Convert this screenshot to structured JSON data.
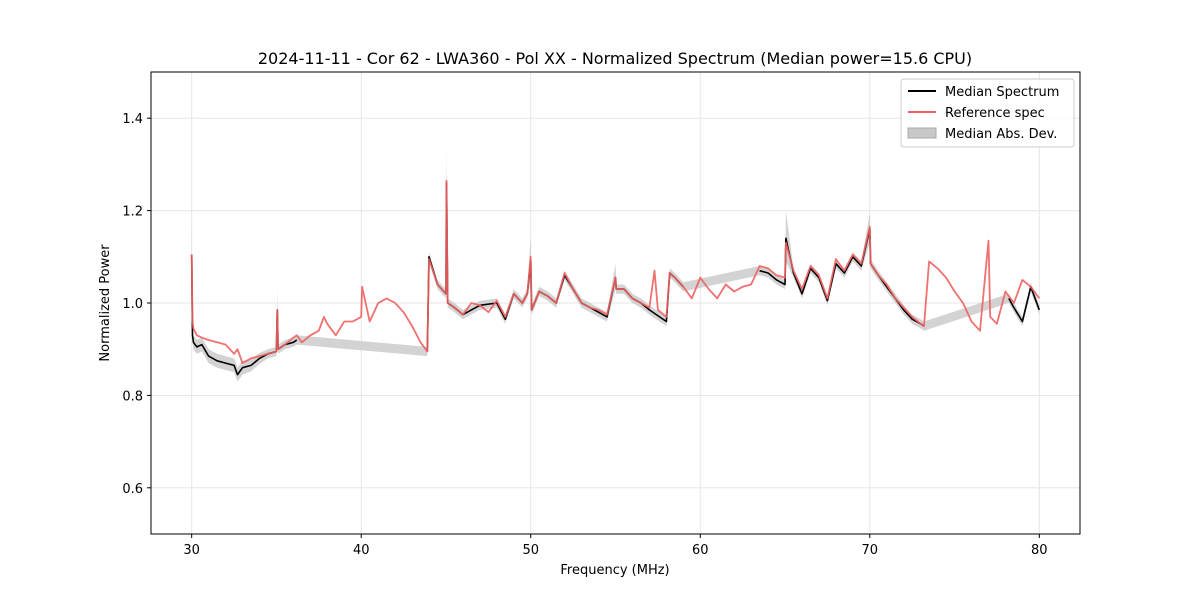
{
  "chart_data": {
    "type": "line",
    "title": "2024-11-11 - Cor 62 - LWA360 - Pol XX - Normalized Spectrum (Median power=15.6 CPU)",
    "xlabel": "Frequency (MHz)",
    "ylabel": "Normalized Power",
    "xlim": [
      27.6,
      82.4
    ],
    "ylim": [
      0.5,
      1.5
    ],
    "xticks": [
      30,
      40,
      50,
      60,
      70,
      80
    ],
    "yticks": [
      0.6,
      0.8,
      1.0,
      1.2,
      1.4
    ],
    "xtick_labels": [
      "30",
      "40",
      "50",
      "60",
      "70",
      "80"
    ],
    "ytick_labels": [
      "0.6",
      "0.8",
      "1.0",
      "1.2",
      "1.4"
    ],
    "grid": true,
    "legend_position": "top-right",
    "legend": [
      {
        "label": "Median Spectrum",
        "kind": "line",
        "color": "#000000"
      },
      {
        "label": "Reference spec",
        "kind": "line",
        "color": "#f06060"
      },
      {
        "label": "Median Abs. Dev.",
        "kind": "patch",
        "color": "#c8c8c8"
      }
    ],
    "series": [
      {
        "name": "Reference spec",
        "color": "#f06060",
        "x": [
          30.0,
          30.05,
          30.1,
          30.3,
          30.6,
          31.0,
          31.5,
          32.0,
          32.5,
          32.7,
          33.0,
          33.5,
          34.0,
          34.5,
          35.0,
          35.05,
          35.1,
          35.5,
          36.0,
          36.2,
          36.5,
          37.0,
          37.5,
          37.8,
          38.0,
          38.5,
          39.0,
          39.5,
          40.0,
          40.05,
          40.5,
          41.0,
          41.5,
          42.0,
          42.5,
          43.0,
          43.5,
          43.9,
          44.0,
          44.5,
          45.0,
          45.03,
          45.1,
          45.5,
          46.0,
          46.5,
          47.0,
          47.5,
          48.0,
          48.5,
          49.0,
          49.5,
          49.8,
          50.0,
          50.05,
          50.5,
          51.0,
          51.5,
          52.0,
          52.5,
          53.0,
          53.5,
          54.0,
          54.5,
          55.0,
          55.05,
          55.5,
          56.0,
          56.5,
          57.0,
          57.3,
          57.5,
          58.0,
          58.2,
          58.5,
          59.0,
          59.5,
          60.0,
          60.5,
          61.0,
          61.5,
          62.0,
          62.5,
          63.0,
          63.5,
          64.0,
          64.5,
          65.0,
          65.05,
          65.5,
          66.0,
          66.5,
          67.0,
          67.5,
          68.0,
          68.5,
          69.0,
          69.5,
          70.0,
          70.05,
          70.5,
          71.0,
          71.5,
          72.0,
          72.5,
          73.0,
          73.2,
          73.5,
          74.0,
          74.5,
          75.0,
          75.5,
          76.0,
          76.5,
          77.0,
          77.1,
          77.5,
          78.0,
          78.5,
          79.0,
          79.5,
          80.0
        ],
        "y": [
          1.105,
          0.96,
          0.945,
          0.93,
          0.925,
          0.92,
          0.915,
          0.91,
          0.89,
          0.9,
          0.87,
          0.88,
          0.885,
          0.89,
          0.895,
          0.985,
          0.9,
          0.91,
          0.925,
          0.93,
          0.915,
          0.93,
          0.94,
          0.97,
          0.955,
          0.93,
          0.96,
          0.96,
          0.97,
          1.035,
          0.96,
          1.0,
          1.01,
          1.0,
          0.98,
          0.95,
          0.915,
          0.895,
          1.095,
          1.04,
          1.02,
          1.265,
          1.0,
          0.99,
          0.975,
          1.0,
          0.995,
          0.98,
          1.005,
          0.97,
          1.02,
          1.0,
          1.02,
          1.1,
          0.985,
          1.025,
          1.015,
          1.0,
          1.065,
          1.03,
          1.0,
          0.99,
          0.985,
          0.975,
          1.055,
          1.03,
          1.03,
          1.01,
          1.0,
          0.99,
          1.07,
          0.985,
          0.97,
          1.065,
          1.055,
          1.035,
          1.01,
          1.055,
          1.03,
          1.01,
          1.04,
          1.025,
          1.035,
          1.04,
          1.08,
          1.075,
          1.06,
          1.055,
          1.13,
          1.07,
          1.03,
          1.08,
          1.06,
          1.01,
          1.095,
          1.07,
          1.105,
          1.085,
          1.165,
          1.085,
          1.06,
          1.04,
          1.01,
          0.99,
          0.97,
          0.955,
          0.95,
          1.09,
          1.075,
          1.055,
          1.025,
          1.0,
          0.96,
          0.94,
          1.135,
          0.97,
          0.955,
          1.025,
          1.0,
          1.05,
          1.035,
          1.01
        ]
      },
      {
        "name": "Median Spectrum",
        "color": "#000000",
        "x": [
          30.0,
          30.05,
          30.1,
          30.3,
          30.6,
          31.0,
          31.5,
          32.0,
          32.5,
          32.7,
          33.0,
          33.5,
          34.0,
          34.5,
          35.0,
          35.05,
          35.1,
          35.5,
          36.0,
          36.2,
          43.9,
          44.0,
          44.5,
          45.0,
          45.03,
          45.1,
          45.5,
          46.0,
          47.0,
          48.0,
          48.5,
          49.0,
          49.5,
          49.8,
          50.0,
          50.05,
          50.5,
          51.0,
          51.5,
          52.0,
          52.5,
          53.0,
          53.5,
          54.0,
          54.5,
          55.0,
          55.05,
          55.5,
          56.0,
          56.5,
          57.0,
          58.0,
          58.2,
          58.5,
          59.0,
          63.5,
          64.0,
          64.5,
          65.0,
          65.05,
          65.5,
          66.0,
          66.5,
          67.0,
          67.5,
          68.0,
          68.5,
          69.0,
          69.5,
          70.0,
          70.05,
          70.5,
          71.0,
          71.5,
          72.0,
          72.5,
          73.0,
          73.2,
          78.2,
          78.5,
          79.0,
          79.5,
          80.0
        ],
        "y": [
          1.105,
          0.93,
          0.915,
          0.905,
          0.91,
          0.885,
          0.875,
          0.87,
          0.865,
          0.845,
          0.86,
          0.865,
          0.88,
          0.89,
          0.895,
          0.985,
          0.9,
          0.91,
          0.915,
          0.92,
          0.895,
          1.1,
          1.04,
          1.02,
          1.26,
          1.0,
          0.99,
          0.975,
          0.995,
          1.0,
          0.965,
          1.02,
          1.0,
          1.02,
          1.09,
          0.985,
          1.025,
          1.015,
          1.0,
          1.06,
          1.03,
          1.0,
          0.99,
          0.98,
          0.97,
          1.055,
          1.03,
          1.03,
          1.01,
          1.0,
          0.985,
          0.96,
          1.065,
          1.055,
          1.035,
          1.07,
          1.065,
          1.05,
          1.04,
          1.14,
          1.065,
          1.02,
          1.075,
          1.055,
          1.005,
          1.085,
          1.065,
          1.1,
          1.08,
          1.16,
          1.085,
          1.06,
          1.035,
          1.01,
          0.985,
          0.965,
          0.955,
          0.95,
          1.01,
          0.99,
          0.96,
          1.035,
          0.985
        ]
      }
    ],
    "band": {
      "name": "Median Abs. Dev.",
      "color": "#c8c8c8",
      "x": [
        30.0,
        30.05,
        30.1,
        30.3,
        30.6,
        31.0,
        31.5,
        32.0,
        32.5,
        32.7,
        33.0,
        33.5,
        34.0,
        34.5,
        35.0,
        35.05,
        35.1,
        35.5,
        36.0,
        36.2,
        43.9,
        44.0,
        44.5,
        45.0,
        45.03,
        45.1,
        45.5,
        46.0,
        47.0,
        48.0,
        48.5,
        49.0,
        49.5,
        49.8,
        50.0,
        50.05,
        50.5,
        51.0,
        51.5,
        52.0,
        52.5,
        53.0,
        53.5,
        54.0,
        54.5,
        55.0,
        55.05,
        55.5,
        56.0,
        56.5,
        57.0,
        58.0,
        58.2,
        58.5,
        59.0,
        63.5,
        64.0,
        64.5,
        65.0,
        65.05,
        65.5,
        66.0,
        66.5,
        67.0,
        67.5,
        68.0,
        68.5,
        69.0,
        69.5,
        70.0,
        70.05,
        70.5,
        71.0,
        71.5,
        72.0,
        72.5,
        73.0,
        73.2,
        78.2,
        78.5,
        79.0,
        79.5,
        80.0
      ],
      "upper": [
        1.17,
        0.945,
        0.93,
        0.92,
        0.925,
        0.9,
        0.89,
        0.885,
        0.88,
        0.86,
        0.875,
        0.878,
        0.892,
        0.9,
        0.905,
        1.03,
        0.91,
        0.92,
        0.925,
        0.93,
        0.905,
        1.11,
        1.05,
        1.03,
        1.335,
        1.01,
        1.0,
        0.985,
        1.005,
        1.01,
        0.975,
        1.03,
        1.01,
        1.03,
        1.145,
        0.995,
        1.035,
        1.025,
        1.01,
        1.07,
        1.04,
        1.01,
        1.0,
        0.99,
        0.98,
        1.085,
        1.04,
        1.04,
        1.02,
        1.01,
        0.995,
        0.97,
        1.075,
        1.065,
        1.045,
        1.08,
        1.075,
        1.06,
        1.05,
        1.2,
        1.075,
        1.03,
        1.085,
        1.065,
        1.015,
        1.095,
        1.075,
        1.11,
        1.09,
        1.195,
        1.095,
        1.07,
        1.045,
        1.02,
        0.995,
        0.975,
        0.965,
        0.96,
        1.02,
        1.0,
        0.97,
        1.045,
        0.995
      ],
      "lower": [
        1.05,
        0.915,
        0.9,
        0.89,
        0.895,
        0.87,
        0.86,
        0.855,
        0.85,
        0.83,
        0.845,
        0.852,
        0.868,
        0.88,
        0.885,
        0.96,
        0.89,
        0.9,
        0.905,
        0.91,
        0.885,
        1.09,
        1.03,
        1.01,
        1.2,
        0.99,
        0.98,
        0.965,
        0.985,
        0.99,
        0.955,
        1.01,
        0.99,
        1.01,
        1.05,
        0.975,
        1.015,
        1.005,
        0.99,
        1.05,
        1.02,
        0.99,
        0.98,
        0.97,
        0.96,
        1.03,
        1.02,
        1.02,
        1.0,
        0.99,
        0.975,
        0.95,
        1.055,
        1.045,
        1.025,
        1.06,
        1.055,
        1.04,
        1.03,
        1.09,
        1.055,
        1.01,
        1.065,
        1.045,
        0.995,
        1.075,
        1.055,
        1.09,
        1.07,
        1.13,
        1.075,
        1.05,
        1.025,
        1.0,
        0.975,
        0.955,
        0.945,
        0.94,
        1.0,
        0.98,
        0.95,
        1.025,
        0.975
      ]
    }
  }
}
